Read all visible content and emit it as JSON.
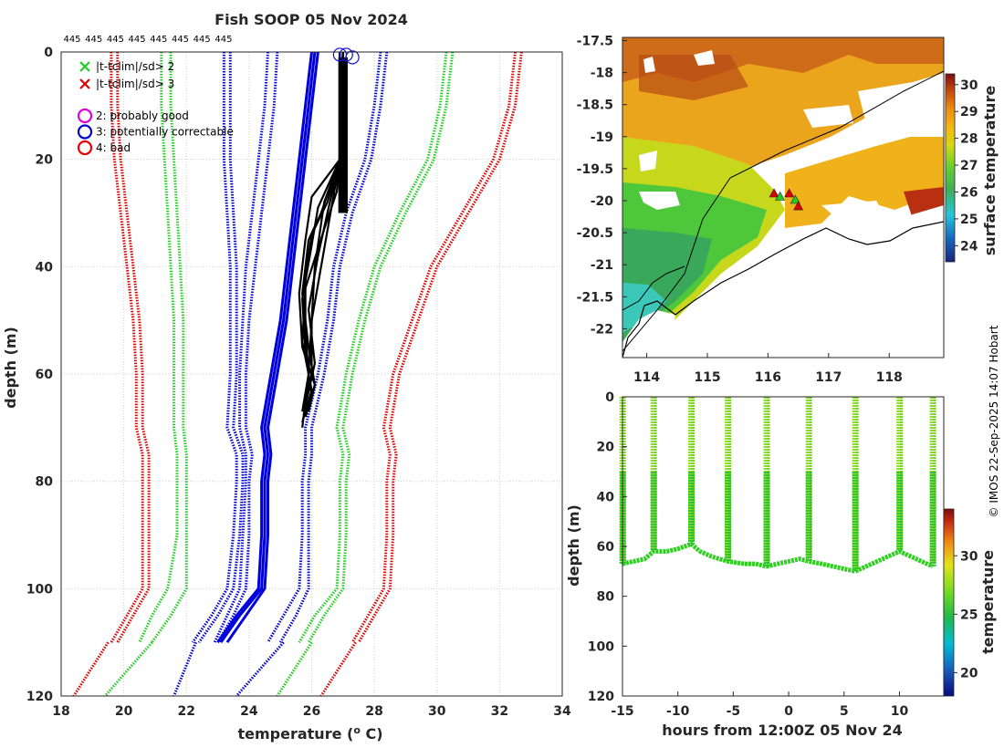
{
  "credit": "© IMOS 22-Sep-2025 14:07 Hobart",
  "chart_data": [
    {
      "id": "profiles",
      "type": "line",
      "title": "Fish SOOP 05 Nov 2024",
      "xlabel": "temperature (",
      "xlabel_sup": "o",
      "xlabel_end": " C)",
      "ylabel": "depth (m)",
      "xlim": [
        18,
        34
      ],
      "ylim": [
        120,
        0
      ],
      "xticks": [
        18,
        20,
        22,
        24,
        26,
        28,
        30,
        32,
        34
      ],
      "yticks": [
        0,
        20,
        40,
        60,
        80,
        100,
        120
      ],
      "top_counts": [
        "445",
        "445",
        "445",
        "445",
        "445",
        "445",
        "445",
        "445"
      ],
      "legend": [
        {
          "marker": "x",
          "color": "#22cc22",
          "label": "|t-tclim|/sd> 2"
        },
        {
          "marker": "x",
          "color": "#dd0000",
          "label": "|t-tclim|/sd> 3"
        },
        {
          "marker": "o",
          "color": "#dd00dd",
          "label": "2: probably good"
        },
        {
          "marker": "o",
          "color": "#0000cc",
          "label": "3: potentially correctable"
        },
        {
          "marker": "o",
          "color": "#ee0000",
          "label": "4: bad"
        }
      ],
      "depth": [
        0,
        10,
        20,
        30,
        40,
        50,
        60,
        70,
        75,
        80,
        90,
        100,
        105,
        110
      ],
      "climatology": [
        {
          "name": "clim -3sd",
          "color": "#dd0000",
          "temps": [
            19.6,
            19.6,
            19.7,
            19.9,
            20.1,
            20.3,
            20.4,
            20.4,
            20.6,
            20.6,
            20.6,
            20.6,
            20.1,
            19.6
          ]
        },
        {
          "name": "clim -3sd b",
          "color": "#dd0000",
          "temps": [
            19.8,
            19.8,
            19.9,
            20.1,
            20.3,
            20.5,
            20.6,
            20.6,
            20.8,
            20.8,
            20.8,
            20.8,
            20.3,
            19.8
          ]
        },
        {
          "name": "clim -2sd",
          "color": "#22cc22",
          "temps": [
            21.5,
            21.5,
            21.6,
            21.7,
            21.8,
            21.9,
            21.9,
            21.9,
            22.0,
            22.0,
            22.0,
            22.0,
            21.5,
            20.9
          ]
        },
        {
          "name": "clim -2sd b",
          "color": "#22cc22",
          "temps": [
            21.2,
            21.2,
            21.3,
            21.4,
            21.5,
            21.6,
            21.6,
            21.6,
            21.7,
            21.7,
            21.7,
            21.4,
            20.9,
            20.5
          ]
        },
        {
          "name": "clim -1sd",
          "color": "#0000cc",
          "temps": [
            23.4,
            23.4,
            23.4,
            23.5,
            23.6,
            23.6,
            23.6,
            23.5,
            23.8,
            23.8,
            23.7,
            23.5,
            23.0,
            22.4
          ]
        },
        {
          "name": "clim -1sd b",
          "color": "#0000cc",
          "temps": [
            23.2,
            23.2,
            23.2,
            23.3,
            23.4,
            23.4,
            23.4,
            23.3,
            23.6,
            23.6,
            23.5,
            23.3,
            22.8,
            22.2
          ]
        },
        {
          "name": "clim mean",
          "color": "#0000dd",
          "temps": [
            24.9,
            24.8,
            24.6,
            24.4,
            24.2,
            24.0,
            23.9,
            23.9,
            24.1,
            24.0,
            24.0,
            23.9,
            23.5,
            23.0
          ]
        },
        {
          "name": "clim mean b",
          "color": "#0000dd",
          "temps": [
            24.6,
            24.5,
            24.3,
            24.1,
            23.9,
            23.8,
            23.7,
            23.7,
            23.9,
            23.9,
            23.8,
            23.7,
            23.3,
            22.9
          ]
        },
        {
          "name": "clim +1sd",
          "color": "#0000cc",
          "temps": [
            28.4,
            28.2,
            27.9,
            27.3,
            26.9,
            26.7,
            26.4,
            26.0,
            26.0,
            25.9,
            25.9,
            25.9,
            25.5,
            25.0
          ]
        },
        {
          "name": "clim +1sd b",
          "color": "#0000cc",
          "temps": [
            28.2,
            28.0,
            27.7,
            27.1,
            26.7,
            26.5,
            26.2,
            25.8,
            25.8,
            25.7,
            25.7,
            25.6,
            25.1,
            24.6
          ]
        },
        {
          "name": "clim +2sd",
          "color": "#22cc22",
          "temps": [
            30.5,
            30.3,
            29.9,
            29.0,
            28.2,
            27.7,
            27.3,
            27.0,
            27.2,
            27.1,
            27.1,
            27.0,
            26.4,
            25.9
          ]
        },
        {
          "name": "clim +2sd b",
          "color": "#22cc22",
          "temps": [
            30.3,
            30.1,
            29.7,
            28.8,
            28.0,
            27.5,
            27.1,
            26.8,
            27.0,
            26.9,
            26.9,
            26.8,
            26.1,
            25.6
          ]
        },
        {
          "name": "clim +3sd",
          "color": "#dd0000",
          "temps": [
            32.7,
            32.5,
            32.0,
            31.0,
            30.0,
            29.4,
            28.8,
            28.5,
            28.7,
            28.6,
            28.6,
            28.5,
            28.0,
            27.5
          ]
        },
        {
          "name": "clim +3sd b",
          "color": "#dd0000",
          "temps": [
            32.5,
            32.3,
            31.8,
            30.8,
            29.8,
            29.2,
            28.6,
            28.3,
            28.5,
            28.4,
            28.4,
            28.3,
            27.8,
            27.3
          ]
        }
      ],
      "mean_profiles": [
        {
          "name": "mean a",
          "color": "#0000dd",
          "temps": [
            26.2,
            26.0,
            25.8,
            25.6,
            25.4,
            25.2,
            24.9,
            24.6,
            24.7,
            24.6,
            24.6,
            24.5,
            23.9,
            23.3
          ]
        },
        {
          "name": "mean b",
          "color": "#0000dd",
          "temps": [
            26.1,
            25.9,
            25.7,
            25.5,
            25.3,
            25.1,
            24.8,
            24.5,
            24.6,
            24.5,
            24.5,
            24.4,
            23.7,
            23.1
          ]
        },
        {
          "name": "mean c",
          "color": "#0000dd",
          "temps": [
            26.0,
            25.8,
            25.6,
            25.4,
            25.2,
            25.0,
            24.7,
            24.4,
            24.5,
            24.4,
            24.4,
            24.3,
            23.6,
            23.0
          ]
        }
      ],
      "observed_profiles": [
        {
          "depths": [
            0,
            10,
            20,
            28,
            32,
            40,
            50,
            60,
            65,
            70
          ],
          "temps": [
            26.9,
            26.9,
            26.9,
            26.4,
            26.3,
            26.1,
            26.0,
            26.0,
            25.8,
            25.7
          ]
        },
        {
          "depths": [
            0,
            10,
            20,
            30,
            35,
            45,
            55,
            62,
            68
          ],
          "temps": [
            26.9,
            26.9,
            26.9,
            26.3,
            25.9,
            25.7,
            25.9,
            26.1,
            25.8
          ]
        },
        {
          "depths": [
            0,
            10,
            20,
            28,
            34,
            42,
            52,
            60,
            67
          ],
          "temps": [
            27.0,
            27.0,
            26.9,
            26.5,
            26.0,
            25.8,
            25.8,
            25.9,
            25.7
          ]
        },
        {
          "depths": [
            0,
            10,
            20,
            30,
            38,
            48,
            58,
            66
          ],
          "temps": [
            26.9,
            26.9,
            26.9,
            26.5,
            26.2,
            25.9,
            26.1,
            25.8
          ]
        },
        {
          "depths": [
            0,
            10,
            20,
            26,
            33,
            44,
            54,
            63,
            69
          ],
          "temps": [
            27.0,
            26.9,
            26.9,
            26.8,
            26.4,
            25.8,
            25.7,
            26.0,
            25.7
          ]
        },
        {
          "depths": [
            0,
            10,
            20,
            29,
            36,
            46,
            56,
            64
          ],
          "temps": [
            26.9,
            26.9,
            26.9,
            26.2,
            26.0,
            25.7,
            25.8,
            26.0
          ]
        },
        {
          "depths": [
            0,
            10,
            20,
            30,
            40,
            50,
            60,
            66
          ],
          "temps": [
            27.0,
            26.9,
            26.9,
            26.6,
            26.3,
            26.0,
            25.9,
            25.8
          ]
        },
        {
          "depths": [
            0,
            10,
            20,
            27,
            35,
            45,
            55,
            62,
            67
          ],
          "temps": [
            26.9,
            26.9,
            26.9,
            26.0,
            25.8,
            25.6,
            25.7,
            26.1,
            25.9
          ]
        }
      ],
      "flag_circles": [
        {
          "temp": 26.9,
          "depth": 0.5
        },
        {
          "temp": 27.1,
          "depth": 0.5
        },
        {
          "temp": 27.3,
          "depth": 1.0
        }
      ]
    },
    {
      "id": "sst_map",
      "type": "heatmap",
      "colorbar_label": "surface temperature",
      "xlim": [
        113.6,
        118.9
      ],
      "ylim": [
        -22.45,
        -17.45
      ],
      "xticks": [
        "114",
        "115",
        "116",
        "117",
        "118"
      ],
      "yticks": [
        "-17.5",
        "-18",
        "-18.5",
        "-19",
        "-19.5",
        "-20",
        "-20.5",
        "-21",
        "-21.5",
        "-22"
      ],
      "clim": [
        23.4,
        30.4
      ],
      "cticks": [
        "24",
        "25",
        "26",
        "27",
        "28",
        "29",
        "30"
      ],
      "track_points": [
        {
          "lon": 116.1,
          "lat": -19.9
        },
        {
          "lon": 116.2,
          "lat": -19.95
        },
        {
          "lon": 116.35,
          "lat": -19.9
        },
        {
          "lon": 116.45,
          "lat": -20.0
        },
        {
          "lon": 116.5,
          "lat": -20.1
        }
      ]
    },
    {
      "id": "depth_time",
      "type": "scatter",
      "xlabel": "hours from 12:00Z 05 Nov 24",
      "ylabel": "depth (m)",
      "colorbar_label": "temperature",
      "xlim": [
        -15,
        14
      ],
      "ylim": [
        120,
        0
      ],
      "xticks": [
        -15,
        -10,
        -5,
        0,
        5,
        10
      ],
      "yticks": [
        0,
        20,
        40,
        60,
        80,
        100,
        120
      ],
      "clim": [
        18,
        34
      ],
      "cticks": [
        "20",
        "25",
        "30"
      ],
      "casts": [
        -15,
        -12.2,
        -8.8,
        -5.5,
        -2,
        1.8,
        6,
        10,
        13
      ],
      "bottom_depths": [
        {
          "t": -15,
          "d": 67
        },
        {
          "t": -14,
          "d": 66
        },
        {
          "t": -13,
          "d": 65
        },
        {
          "t": -12.2,
          "d": 62
        },
        {
          "t": -11,
          "d": 62
        },
        {
          "t": -10,
          "d": 61
        },
        {
          "t": -8.8,
          "d": 59
        },
        {
          "t": -8,
          "d": 62
        },
        {
          "t": -7,
          "d": 64
        },
        {
          "t": -5.5,
          "d": 66
        },
        {
          "t": -4,
          "d": 67
        },
        {
          "t": -3,
          "d": 67
        },
        {
          "t": -2,
          "d": 68
        },
        {
          "t": -1,
          "d": 67
        },
        {
          "t": 0,
          "d": 66
        },
        {
          "t": 1,
          "d": 65
        },
        {
          "t": 1.8,
          "d": 66
        },
        {
          "t": 3,
          "d": 67
        },
        {
          "t": 4,
          "d": 68
        },
        {
          "t": 5,
          "d": 69
        },
        {
          "t": 6,
          "d": 70
        },
        {
          "t": 7,
          "d": 68
        },
        {
          "t": 8,
          "d": 66
        },
        {
          "t": 9,
          "d": 64
        },
        {
          "t": 10,
          "d": 62
        },
        {
          "t": 11,
          "d": 64
        },
        {
          "t": 12,
          "d": 66
        },
        {
          "t": 13,
          "d": 68
        }
      ]
    }
  ]
}
